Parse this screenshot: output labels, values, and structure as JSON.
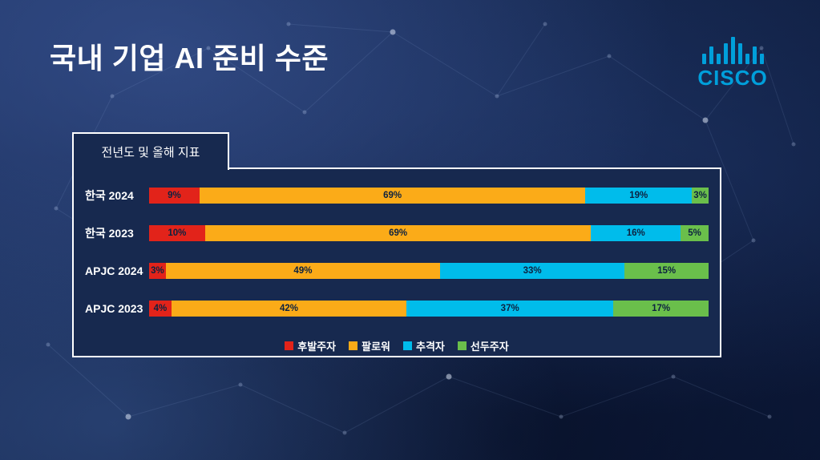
{
  "slide": {
    "title": "국내 기업 AI 준비 수준"
  },
  "logo": {
    "brand": "CISCO",
    "color": "#009fdb"
  },
  "panel": {
    "tab_label": "전년도 및 올해 지표"
  },
  "chart_data": {
    "type": "bar",
    "orientation": "horizontal-stacked",
    "title": "전년도 및 올해 지표",
    "categories": [
      "한국 2024",
      "한국 2023",
      "APJC 2024",
      "APJC 2023"
    ],
    "series": [
      {
        "name": "후발주자",
        "color": "#e2231a",
        "values": [
          9,
          10,
          3,
          4
        ]
      },
      {
        "name": "팔로워",
        "color": "#fbab18",
        "values": [
          69,
          69,
          49,
          42
        ]
      },
      {
        "name": "추격자",
        "color": "#00bceb",
        "values": [
          19,
          16,
          33,
          37
        ]
      },
      {
        "name": "선두주자",
        "color": "#6abf4b",
        "values": [
          3,
          5,
          15,
          17
        ]
      }
    ],
    "value_format": "percent",
    "xlim": [
      0,
      100
    ],
    "grid": false,
    "legend_position": "bottom"
  }
}
